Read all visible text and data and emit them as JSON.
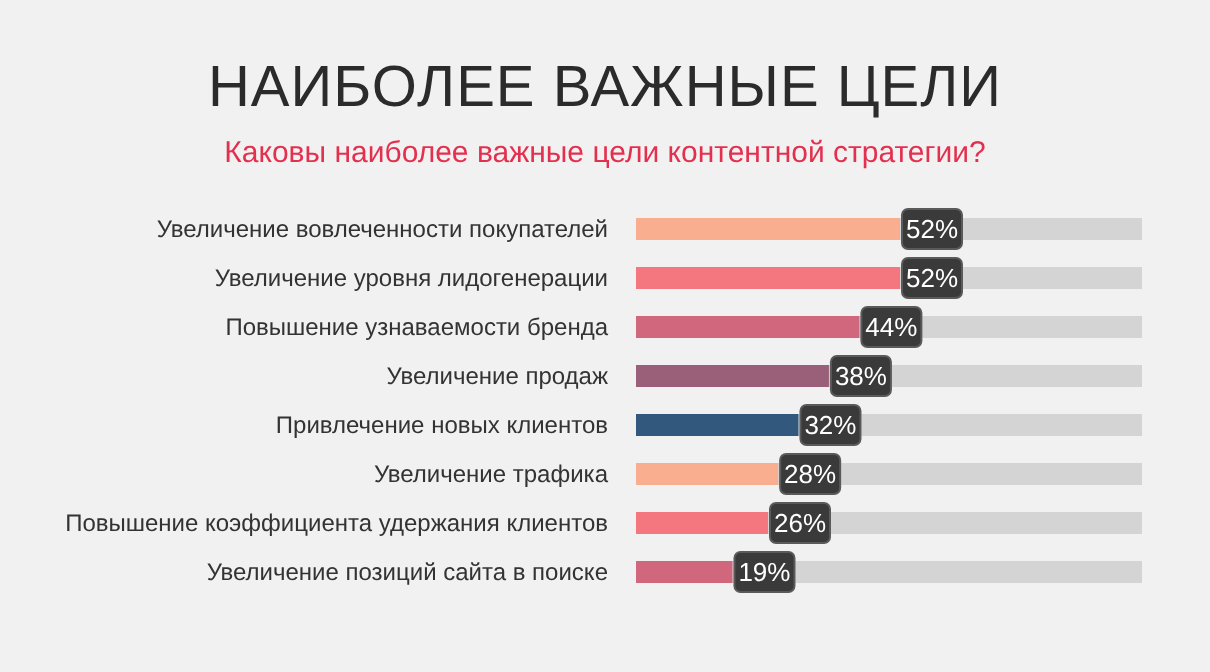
{
  "chart_data": {
    "type": "bar",
    "orientation": "horizontal",
    "title": "НАИБОЛЕЕ ВАЖНЫЕ ЦЕЛИ",
    "subtitle": "Каковы наиболее важные цели контентной стратегии?",
    "categories": [
      "Увеличение вовлеченности покупателей",
      "Увеличение уровня лидогенерации",
      "Повышение узнаваемости бренда",
      "Увеличение продаж",
      "Привлечение новых клиентов",
      "Увеличение трафика",
      "Повышение коэффициента удержания клиентов",
      "Увеличение позиций сайта в поиске"
    ],
    "values": [
      52,
      52,
      44,
      38,
      32,
      28,
      26,
      19
    ],
    "value_labels": [
      "52%",
      "52%",
      "44%",
      "38%",
      "32%",
      "28%",
      "26%",
      "19%"
    ],
    "colors": [
      "#f8ae8f",
      "#f47780",
      "#d0677d",
      "#9a6079",
      "#33587d",
      "#f8ae8f",
      "#f47780",
      "#d0677d"
    ],
    "tick_labels": "y"
  }
}
